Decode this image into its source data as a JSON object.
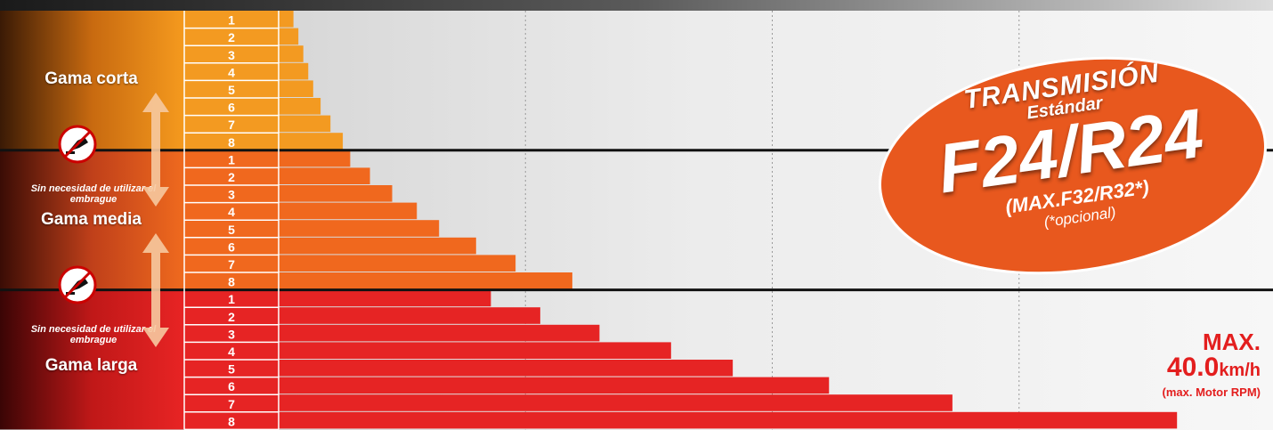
{
  "chart_data": {
    "type": "bar",
    "orientation": "horizontal",
    "xlim": [
      0,
      40.0
    ],
    "grid": true,
    "groups": [
      {
        "label": "Gama corta",
        "gears": [
          "1",
          "2",
          "3",
          "4",
          "5",
          "6",
          "7",
          "8"
        ],
        "values": [
          0.6,
          0.8,
          1.0,
          1.2,
          1.4,
          1.7,
          2.1,
          2.6
        ],
        "color": "#f39a21"
      },
      {
        "label": "Gama media",
        "gears": [
          "1",
          "2",
          "3",
          "4",
          "5",
          "6",
          "7",
          "8"
        ],
        "values": [
          2.9,
          3.7,
          4.6,
          5.6,
          6.5,
          8.0,
          9.6,
          11.9
        ],
        "color": "#f0681e"
      },
      {
        "label": "Gama larga",
        "gears": [
          "1",
          "2",
          "3",
          "4",
          "5",
          "6",
          "7",
          "8"
        ],
        "values": [
          8.6,
          10.6,
          13.0,
          15.9,
          18.4,
          22.3,
          27.3,
          36.4
        ],
        "color": "#e62424"
      }
    ],
    "clutch_note": "Sin necesidad de utilizar el embrague",
    "max_label": {
      "line1": "MAX.",
      "value": "40.0",
      "unit": "km/h",
      "note": "(max. Motor RPM)"
    }
  },
  "badge": {
    "title": "TRANSMISIÓN",
    "subtitle": "Estándar",
    "main": "F24/R24",
    "max": "(MAX.F32/R32*)",
    "optional": "(*opcional)",
    "color": "#e8581e"
  },
  "icons": [
    "pedal-no-clutch-icon",
    "double-arrow-icon"
  ]
}
